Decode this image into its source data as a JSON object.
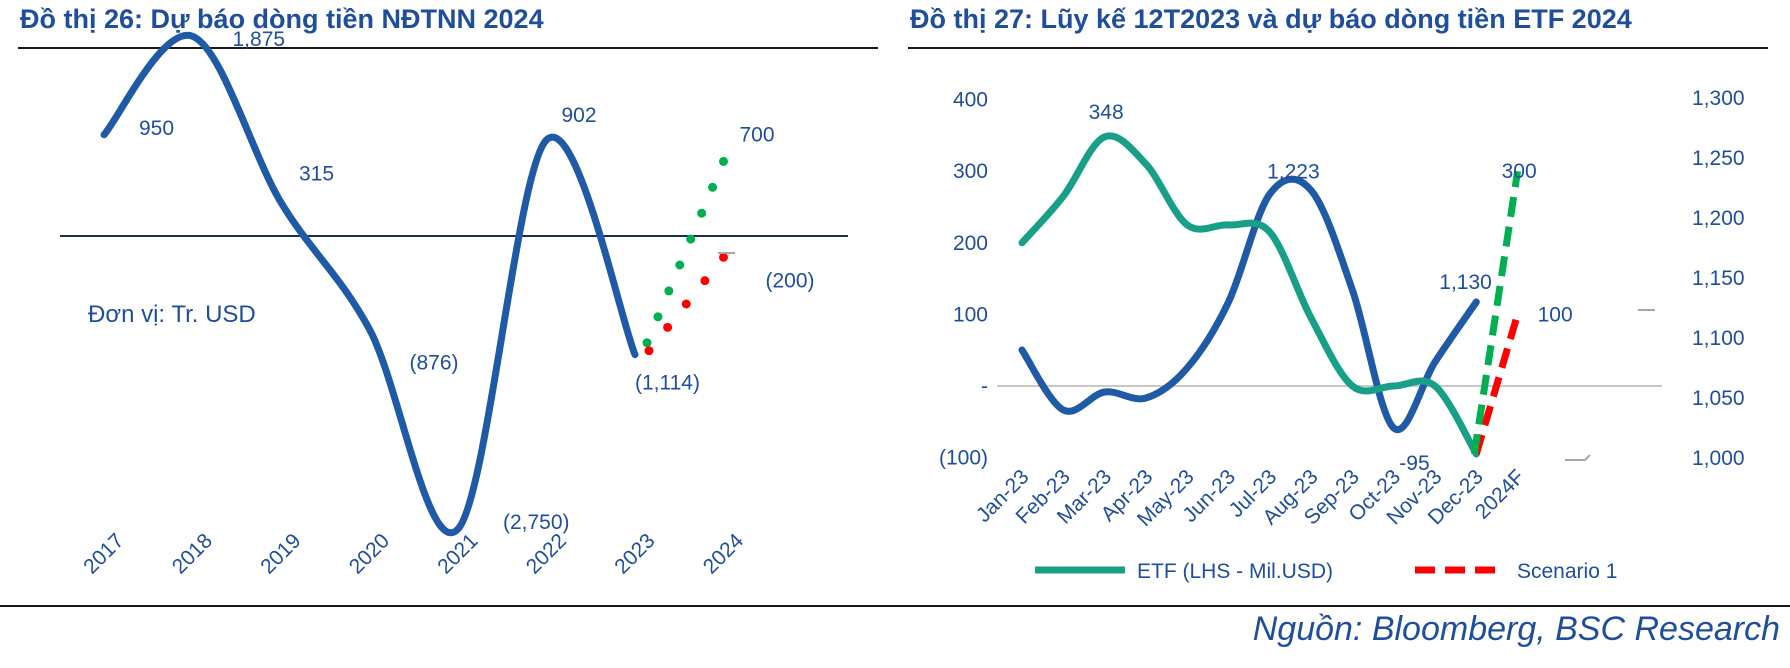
{
  "left_title": "Đồ thị 26: Dự báo dòng tiền NĐTNN 2024",
  "right_title": "Đồ thị 27: Lũy kế 12T2023 và dự báo dòng tiền ETF 2024",
  "source": "Nguồn: Bloomberg, BSC Research",
  "colors": {
    "title": "#1f4e9c",
    "line_blue": "#1f5aa6",
    "etf_teal": "#17a087",
    "scenario_red": "#ff0000",
    "scenario_green": "#00b050",
    "zero_line_left": "#1a2f55",
    "zero_line_right": "#c8c8c8"
  },
  "chart_data": [
    {
      "type": "line",
      "title": "Đồ thị 26: Dự báo dòng tiền NĐTNN 2024",
      "unit_note": "Đơn vị: Tr. USD",
      "categories": [
        "2017",
        "2018",
        "2019",
        "2020",
        "2021",
        "2022",
        "2023",
        "2024"
      ],
      "series": [
        {
          "values": [
            950,
            1875,
            315,
            -876,
            -2750,
            902,
            -1114,
            null
          ],
          "labels": [
            "950",
            "1,875",
            "315",
            "(876)",
            "(2,750)",
            "902",
            "(1,114)",
            ""
          ]
        },
        {
          "style": "dotted-green",
          "values": [
            null,
            null,
            null,
            null,
            null,
            null,
            -1114,
            700
          ],
          "label": "700"
        },
        {
          "style": "dotted-red",
          "values": [
            null,
            null,
            null,
            null,
            null,
            null,
            -1114,
            -200
          ],
          "label": "(200)"
        }
      ]
    },
    {
      "type": "line",
      "title": "Đồ thị 27: Lũy kế 12T2023 và dự báo dòng tiền ETF 2024",
      "categories": [
        "Jan-23",
        "Feb-23",
        "Mar-23",
        "Apr-23",
        "May-23",
        "Jun-23",
        "Jul-23",
        "Aug-23",
        "Sep-23",
        "Oct-23",
        "Nov-23",
        "Dec-23",
        "2024F"
      ],
      "left_axis": {
        "ticks": [
          "400",
          "300",
          "200",
          "100",
          "-",
          "(100)"
        ],
        "range": [
          -100,
          400
        ]
      },
      "right_axis": {
        "ticks": [
          "1,300",
          "1,250",
          "1,200",
          "1,150",
          "1,100",
          "1,050",
          "1,000"
        ],
        "range": [
          1000,
          1300
        ]
      },
      "series": [
        {
          "name": "ETF (LHS - Mil.USD)",
          "axis": "left",
          "values": [
            200,
            265,
            348,
            310,
            225,
            225,
            215,
            95,
            0,
            0,
            0,
            -95,
            null
          ]
        },
        {
          "axis": "right",
          "values": [
            1090,
            1040,
            1055,
            1050,
            1075,
            1130,
            1220,
            1223,
            1140,
            1025,
            1080,
            1130,
            null
          ]
        },
        {
          "name": "Scenario 1",
          "axis": "left",
          "style": "dashed-red",
          "values": [
            null,
            null,
            null,
            null,
            null,
            null,
            null,
            null,
            null,
            null,
            null,
            -95,
            100
          ]
        },
        {
          "axis": "left",
          "style": "dashed-green",
          "values": [
            null,
            null,
            null,
            null,
            null,
            null,
            null,
            null,
            null,
            null,
            null,
            -95,
            300
          ]
        }
      ],
      "data_labels": {
        "etf_peak": "348",
        "etf_end": "-95",
        "blue_peak": "1,223",
        "blue_end": "1,130",
        "scenario_red": "100",
        "scenario_green": "300"
      },
      "legend": [
        "ETF (LHS - Mil.USD)",
        "Scenario 1"
      ]
    }
  ]
}
